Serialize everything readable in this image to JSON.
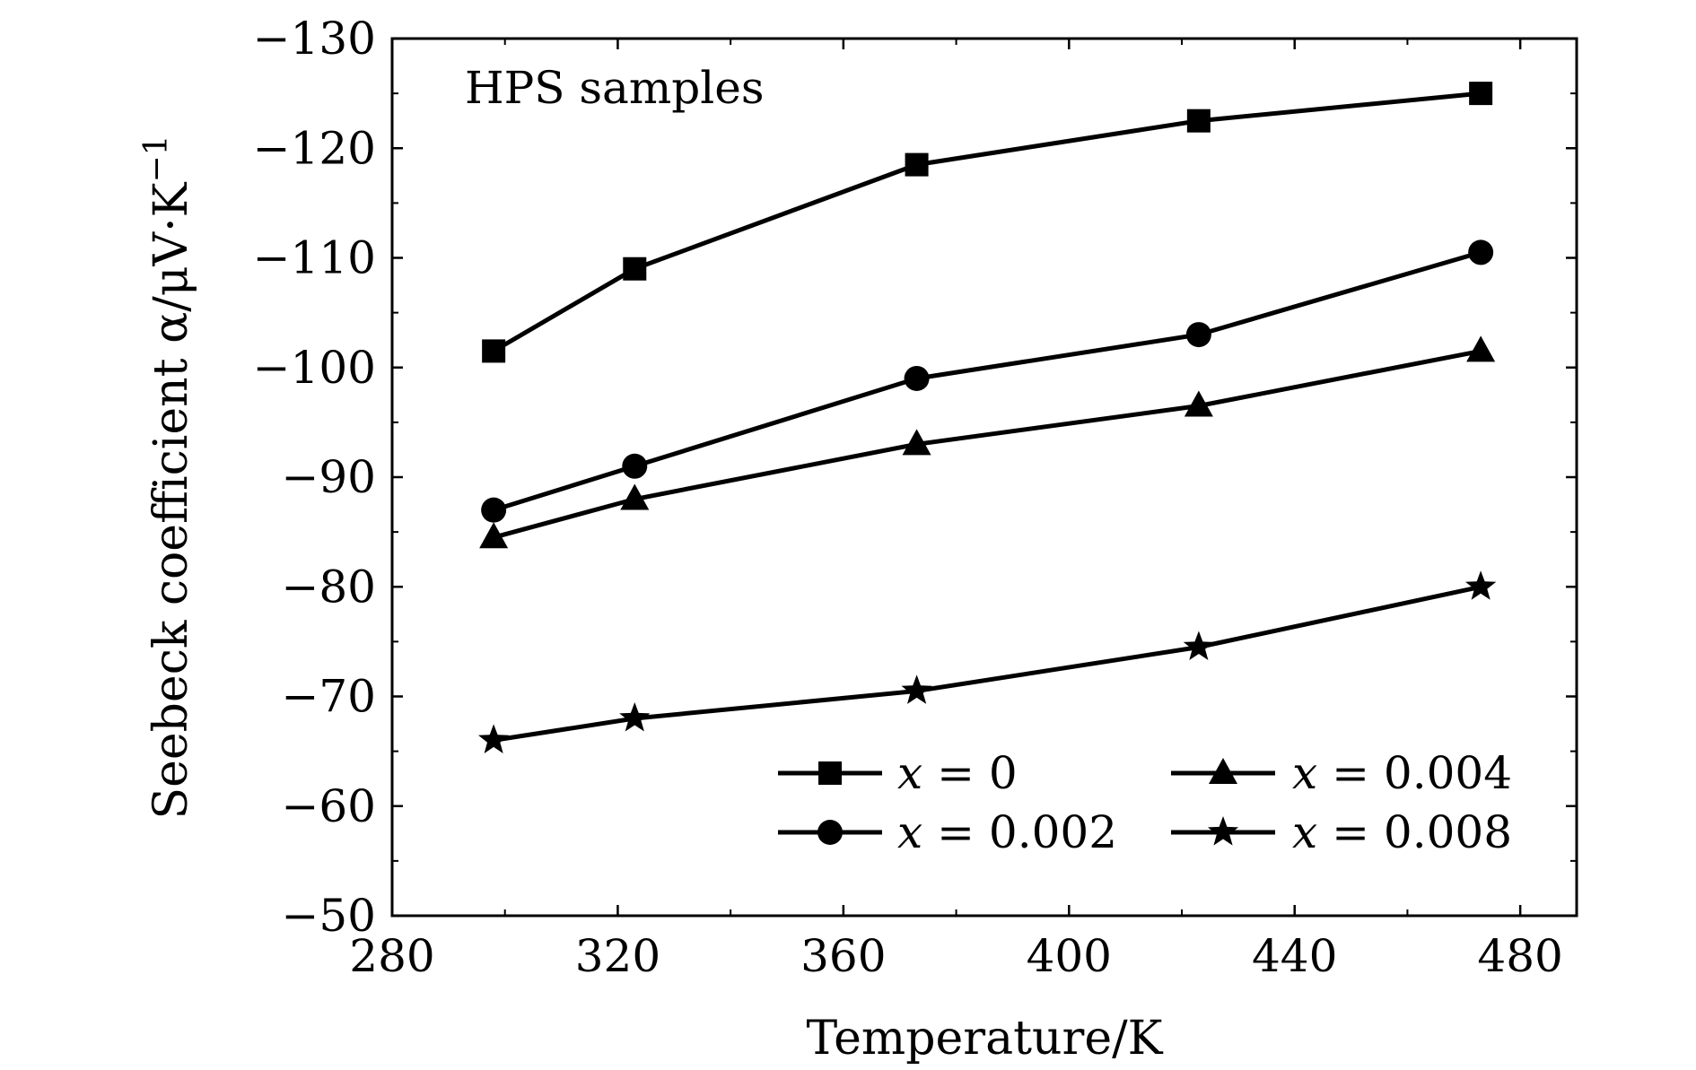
{
  "chart_data": {
    "type": "line",
    "xlabel": "Temperature/K",
    "ylabel": "Seebeck coefficient α/μV·K",
    "ylabel_sup": "−1",
    "annotation": "HPS samples",
    "xlim": [
      280,
      490
    ],
    "ylim": [
      -50,
      -130
    ],
    "y_axis_inverted": true,
    "x_ticks": [
      280,
      320,
      360,
      400,
      440,
      480
    ],
    "x_tick_labels": [
      "280",
      "320",
      "360",
      "400",
      "440",
      "480"
    ],
    "y_ticks": [
      -50,
      -60,
      -70,
      -80,
      -90,
      -100,
      -110,
      -120,
      -130
    ],
    "y_tick_labels": [
      "−50",
      "−60",
      "−70",
      "−80",
      "−90",
      "−100",
      "−110",
      "−120",
      "−130"
    ],
    "x": [
      298,
      323,
      373,
      423,
      473
    ],
    "legend_position": "bottom-right",
    "series": [
      {
        "name": "x = 0",
        "var": "x",
        "value": "= 0",
        "marker": "square",
        "values": [
          -101.5,
          -109,
          -118.5,
          -122.5,
          -125
        ]
      },
      {
        "name": "x = 0.002",
        "var": "x",
        "value": "= 0.002",
        "marker": "circle",
        "values": [
          -87,
          -91,
          -99,
          -103,
          -110.5
        ]
      },
      {
        "name": "x = 0.004",
        "var": "x",
        "value": "= 0.004",
        "marker": "triangle",
        "values": [
          -84.5,
          -88,
          -93,
          -96.5,
          -101.5
        ]
      },
      {
        "name": "x = 0.008",
        "var": "x",
        "value": "= 0.008",
        "marker": "star",
        "values": [
          -66,
          -68,
          -70.5,
          -74.5,
          -80
        ]
      }
    ],
    "line_color": "#000000",
    "grid": false
  }
}
